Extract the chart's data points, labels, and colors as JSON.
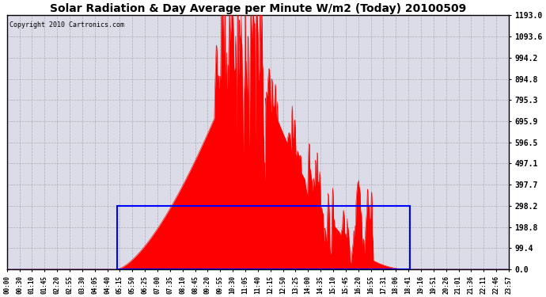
{
  "title": "Solar Radiation & Day Average per Minute W/m2 (Today) 20100509",
  "copyright": "Copyright 2010 Cartronics.com",
  "background_color": "#ffffff",
  "plot_bg_color": "#dcdce8",
  "y_ticks": [
    0.0,
    99.4,
    198.8,
    298.2,
    397.7,
    497.1,
    596.5,
    695.9,
    795.3,
    894.8,
    994.2,
    1093.6,
    1193.0
  ],
  "y_max": 1193.0,
  "y_min": 0.0,
  "grid_color": "#aaaaaa",
  "solar_color": "#ff0000",
  "avg_color": "#0000ff",
  "avg_value": 298.2,
  "sunrise_min": 315,
  "sunset_min": 1155,
  "x_tick_labels": [
    "00:00",
    "00:30",
    "01:10",
    "01:45",
    "02:20",
    "02:55",
    "03:30",
    "04:05",
    "04:40",
    "05:15",
    "05:50",
    "06:25",
    "07:00",
    "07:35",
    "08:10",
    "08:45",
    "09:20",
    "09:55",
    "10:30",
    "11:05",
    "11:40",
    "12:15",
    "12:50",
    "13:25",
    "14:00",
    "14:35",
    "15:10",
    "15:45",
    "16:20",
    "16:55",
    "17:31",
    "18:06",
    "18:41",
    "19:16",
    "19:51",
    "20:26",
    "21:01",
    "21:36",
    "22:11",
    "22:46",
    "23:57"
  ]
}
